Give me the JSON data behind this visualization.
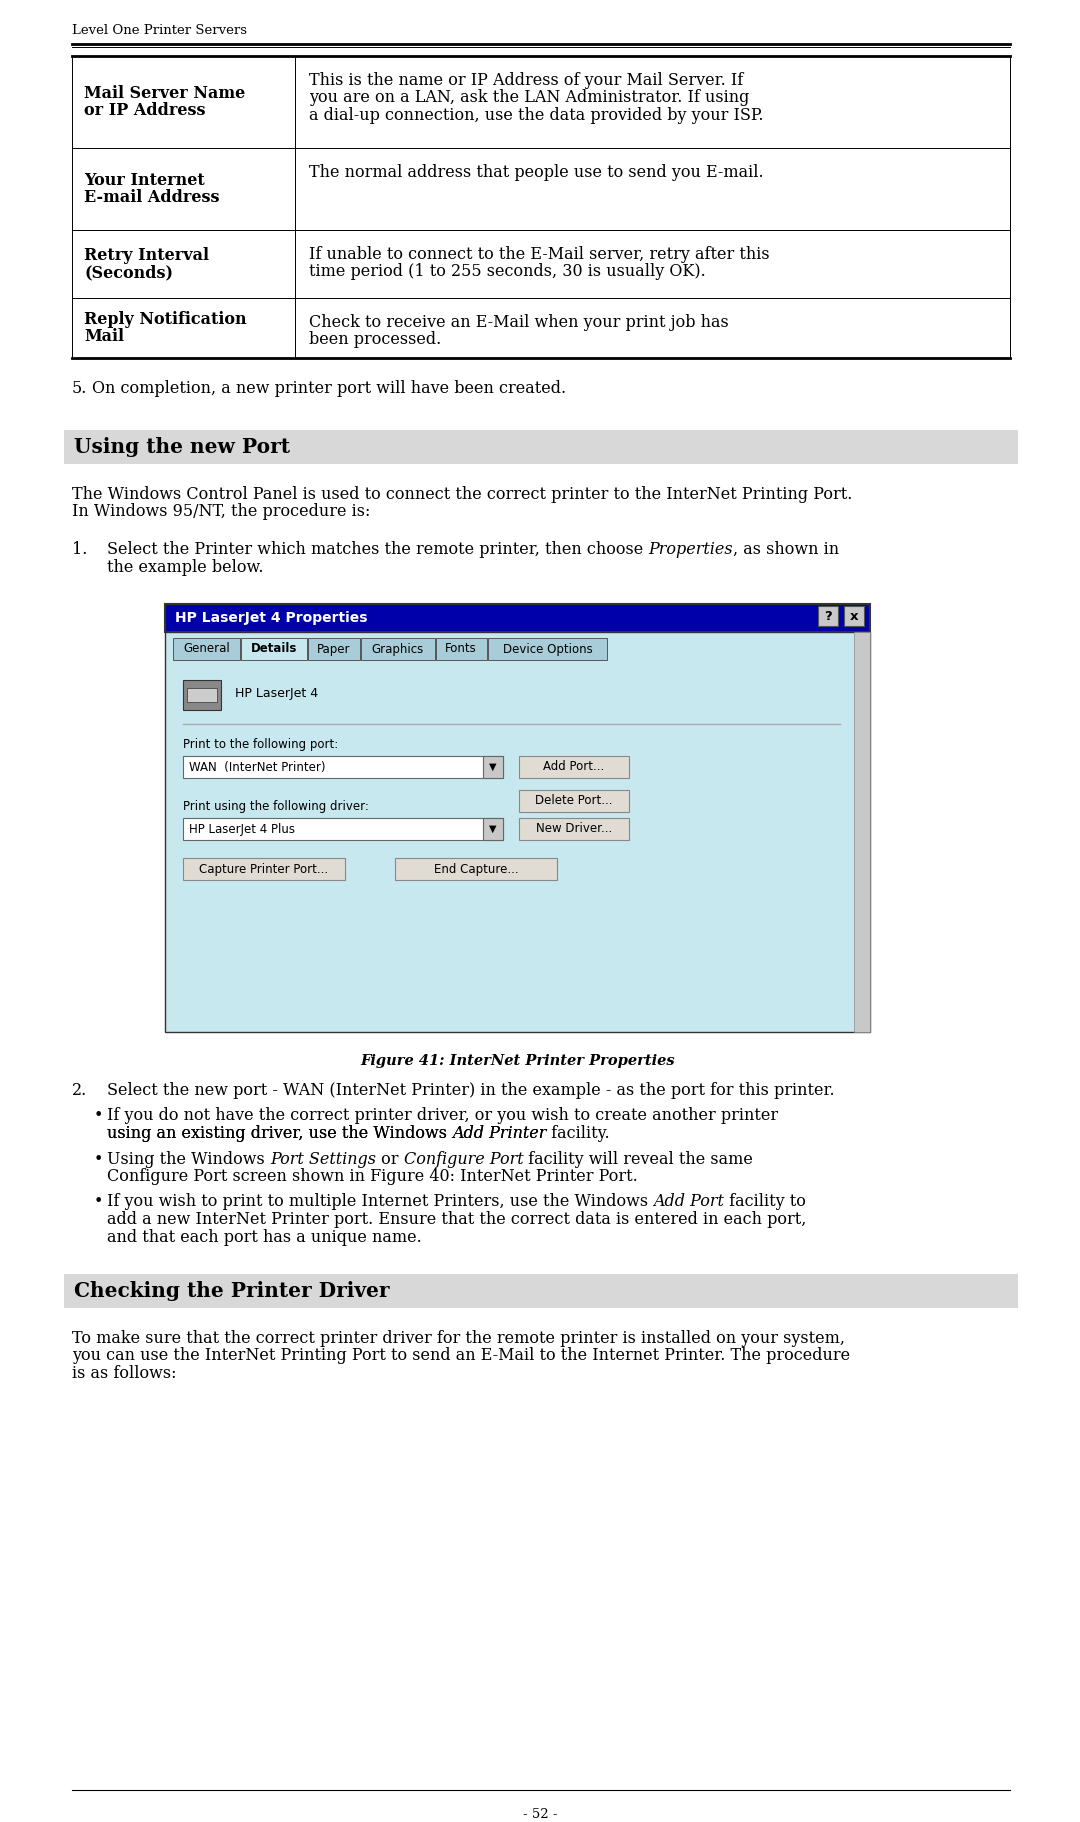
{
  "page_bg": "#ffffff",
  "header_text": "Level One Printer Servers",
  "table_rows": [
    {
      "label": "Mail Server Name\nor IP Address",
      "desc": "This is the name or IP Address of your Mail Server. If\nyou are on a LAN, ask the LAN Administrator. If using\na dial-up connection, use the data provided by your ISP."
    },
    {
      "label": "Your Internet\nE-mail Address",
      "desc": "The normal address that people use to send you E-mail."
    },
    {
      "label": "Retry Interval\n(Seconds)",
      "desc": "If unable to connect to the E-Mail server, retry after this\ntime period (1 to 255 seconds, 30 is usually OK)."
    },
    {
      "label": "Reply Notification\nMail",
      "desc": "Check to receive an E-Mail when your print job has\nbeen processed."
    }
  ],
  "section1_title": "Using the new Port",
  "section1_bg": "#d8d8d8",
  "para1_line1": "The Windows Control Panel is used to connect the correct printer to the InterNet Printing Port.",
  "para1_line2": "In Windows 95/NT, the procedure is:",
  "step1_pre": "Select the Printer which matches the remote printer, then choose ",
  "step1_italic": "Properties",
  "step1_post": ", as shown in",
  "step1_line2": "the example below.",
  "fig_title_bar": "HP LaserJet 4 Properties",
  "fig_title_bar_bg": "#0000aa",
  "fig_title_bar_fg": "#ffffff",
  "fig_bg": "#c8e8f0",
  "fig_tabs": [
    "General",
    "Details",
    "Paper",
    "Graphics",
    "Fonts",
    "Device Options"
  ],
  "fig_active_tab": "Details",
  "fig_printer_name": "HP LaserJet 4",
  "fig_port_label": "Print to the following port:",
  "fig_port_value": "WAN  (InterNet Printer)",
  "fig_btn1": "Add Port...",
  "fig_btn2": "Delete Port...",
  "fig_driver_label": "Print using the following driver:",
  "fig_driver_value": "HP LaserJet 4 Plus",
  "fig_btn3": "New Driver...",
  "fig_btn4": "Capture Printer Port...",
  "fig_btn5": "End Capture...",
  "fig_caption": "Figure 41: InterNet Printer Properties",
  "step2_text": "Select the new port - WAN (InterNet Printer) in the example - as the port for this printer.",
  "bullet1_line1_plain": "If you do not have the correct printer driver, or you wish to create another printer",
  "bullet1_line2_pre": "using an existing driver, use the Windows ",
  "bullet1_line2_italic": "Add Printer",
  "bullet1_line2_post": " facility.",
  "bullet2_line1_pre": "Using the Windows ",
  "bullet2_line1_it1": "Port Settings",
  "bullet2_line1_mid": " or ",
  "bullet2_line1_it2": "Configure Port",
  "bullet2_line1_post": " facility will reveal the same",
  "bullet2_line2": "Configure Port screen shown in Figure 40: InterNet Printer Port.",
  "bullet3_line1_pre": "If you wish to print to multiple Internet Printers, use the Windows ",
  "bullet3_line1_it": "Add Port",
  "bullet3_line1_post": " facility to",
  "bullet3_line2": "add a new InterNet Printer port. Ensure that the correct data is entered in each port,",
  "bullet3_line3": "and that each port has a unique name.",
  "section2_title": "Checking the Printer Driver",
  "section2_bg": "#d8d8d8",
  "para2_line1": "To make sure that the correct printer driver for the remote printer is installed on your system,",
  "para2_line2": "you can use the InterNet Printing Port to send an E-Mail to the Internet Printer. The procedure",
  "para2_line3": "is as follows:",
  "footer_text": "- 52 -"
}
